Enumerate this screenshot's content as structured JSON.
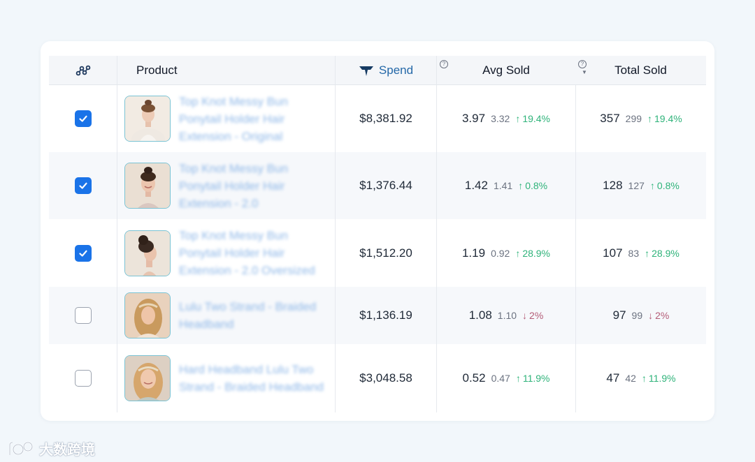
{
  "header": {
    "product_label": "Product",
    "spend_label": "Spend",
    "avg_sold_label": "Avg Sold",
    "total_sold_label": "Total Sold",
    "help_glyph": "?"
  },
  "rows": [
    {
      "checked": true,
      "name": "Top Knot Messy Bun Ponytail Holder Hair Extension - Original",
      "spend": "$8,381.92",
      "avg": "3.97",
      "avg_prev": "3.32",
      "avg_delta": "19.4%",
      "avg_dir": "up",
      "total": "357",
      "total_prev": "299",
      "total_delta": "19.4%",
      "total_dir": "up",
      "thumb_icon": "woman-bun-photo"
    },
    {
      "checked": true,
      "name": "Top Knot Messy Bun Ponytail Holder Hair Extension - 2.0",
      "spend": "$1,376.44",
      "avg": "1.42",
      "avg_prev": "1.41",
      "avg_delta": "0.8%",
      "avg_dir": "up",
      "total": "128",
      "total_prev": "127",
      "total_delta": "0.8%",
      "total_dir": "up",
      "thumb_icon": "woman-bun-photo"
    },
    {
      "checked": true,
      "name": "Top Knot Messy Bun Ponytail Holder Hair Extension - 2.0 Oversized",
      "spend": "$1,512.20",
      "avg": "1.19",
      "avg_prev": "0.92",
      "avg_delta": "28.9%",
      "avg_dir": "up",
      "total": "107",
      "total_prev": "83",
      "total_delta": "28.9%",
      "total_dir": "up",
      "thumb_icon": "woman-bun-profile-photo"
    },
    {
      "checked": false,
      "name": "Lulu Two Strand - Braided Headband",
      "spend": "$1,136.19",
      "avg": "1.08",
      "avg_prev": "1.10",
      "avg_delta": "2%",
      "avg_dir": "down",
      "total": "97",
      "total_prev": "99",
      "total_delta": "2%",
      "total_dir": "down",
      "thumb_icon": "woman-headband-photo"
    },
    {
      "checked": false,
      "name": "Hard Headband Lulu Two Strand - Braided Headband",
      "spend": "$3,048.58",
      "avg": "0.52",
      "avg_prev": "0.47",
      "avg_delta": "11.9%",
      "avg_dir": "up",
      "total": "47",
      "total_prev": "42",
      "total_delta": "11.9%",
      "total_dir": "up",
      "thumb_icon": "woman-headband-photo"
    }
  ],
  "watermark": {
    "text": "大数跨境"
  },
  "colors": {
    "accent": "#1a73e8",
    "up": "#2fb37a",
    "down": "#b45d78",
    "link": "#8fb8e8",
    "spend_header": "#2468a8"
  }
}
